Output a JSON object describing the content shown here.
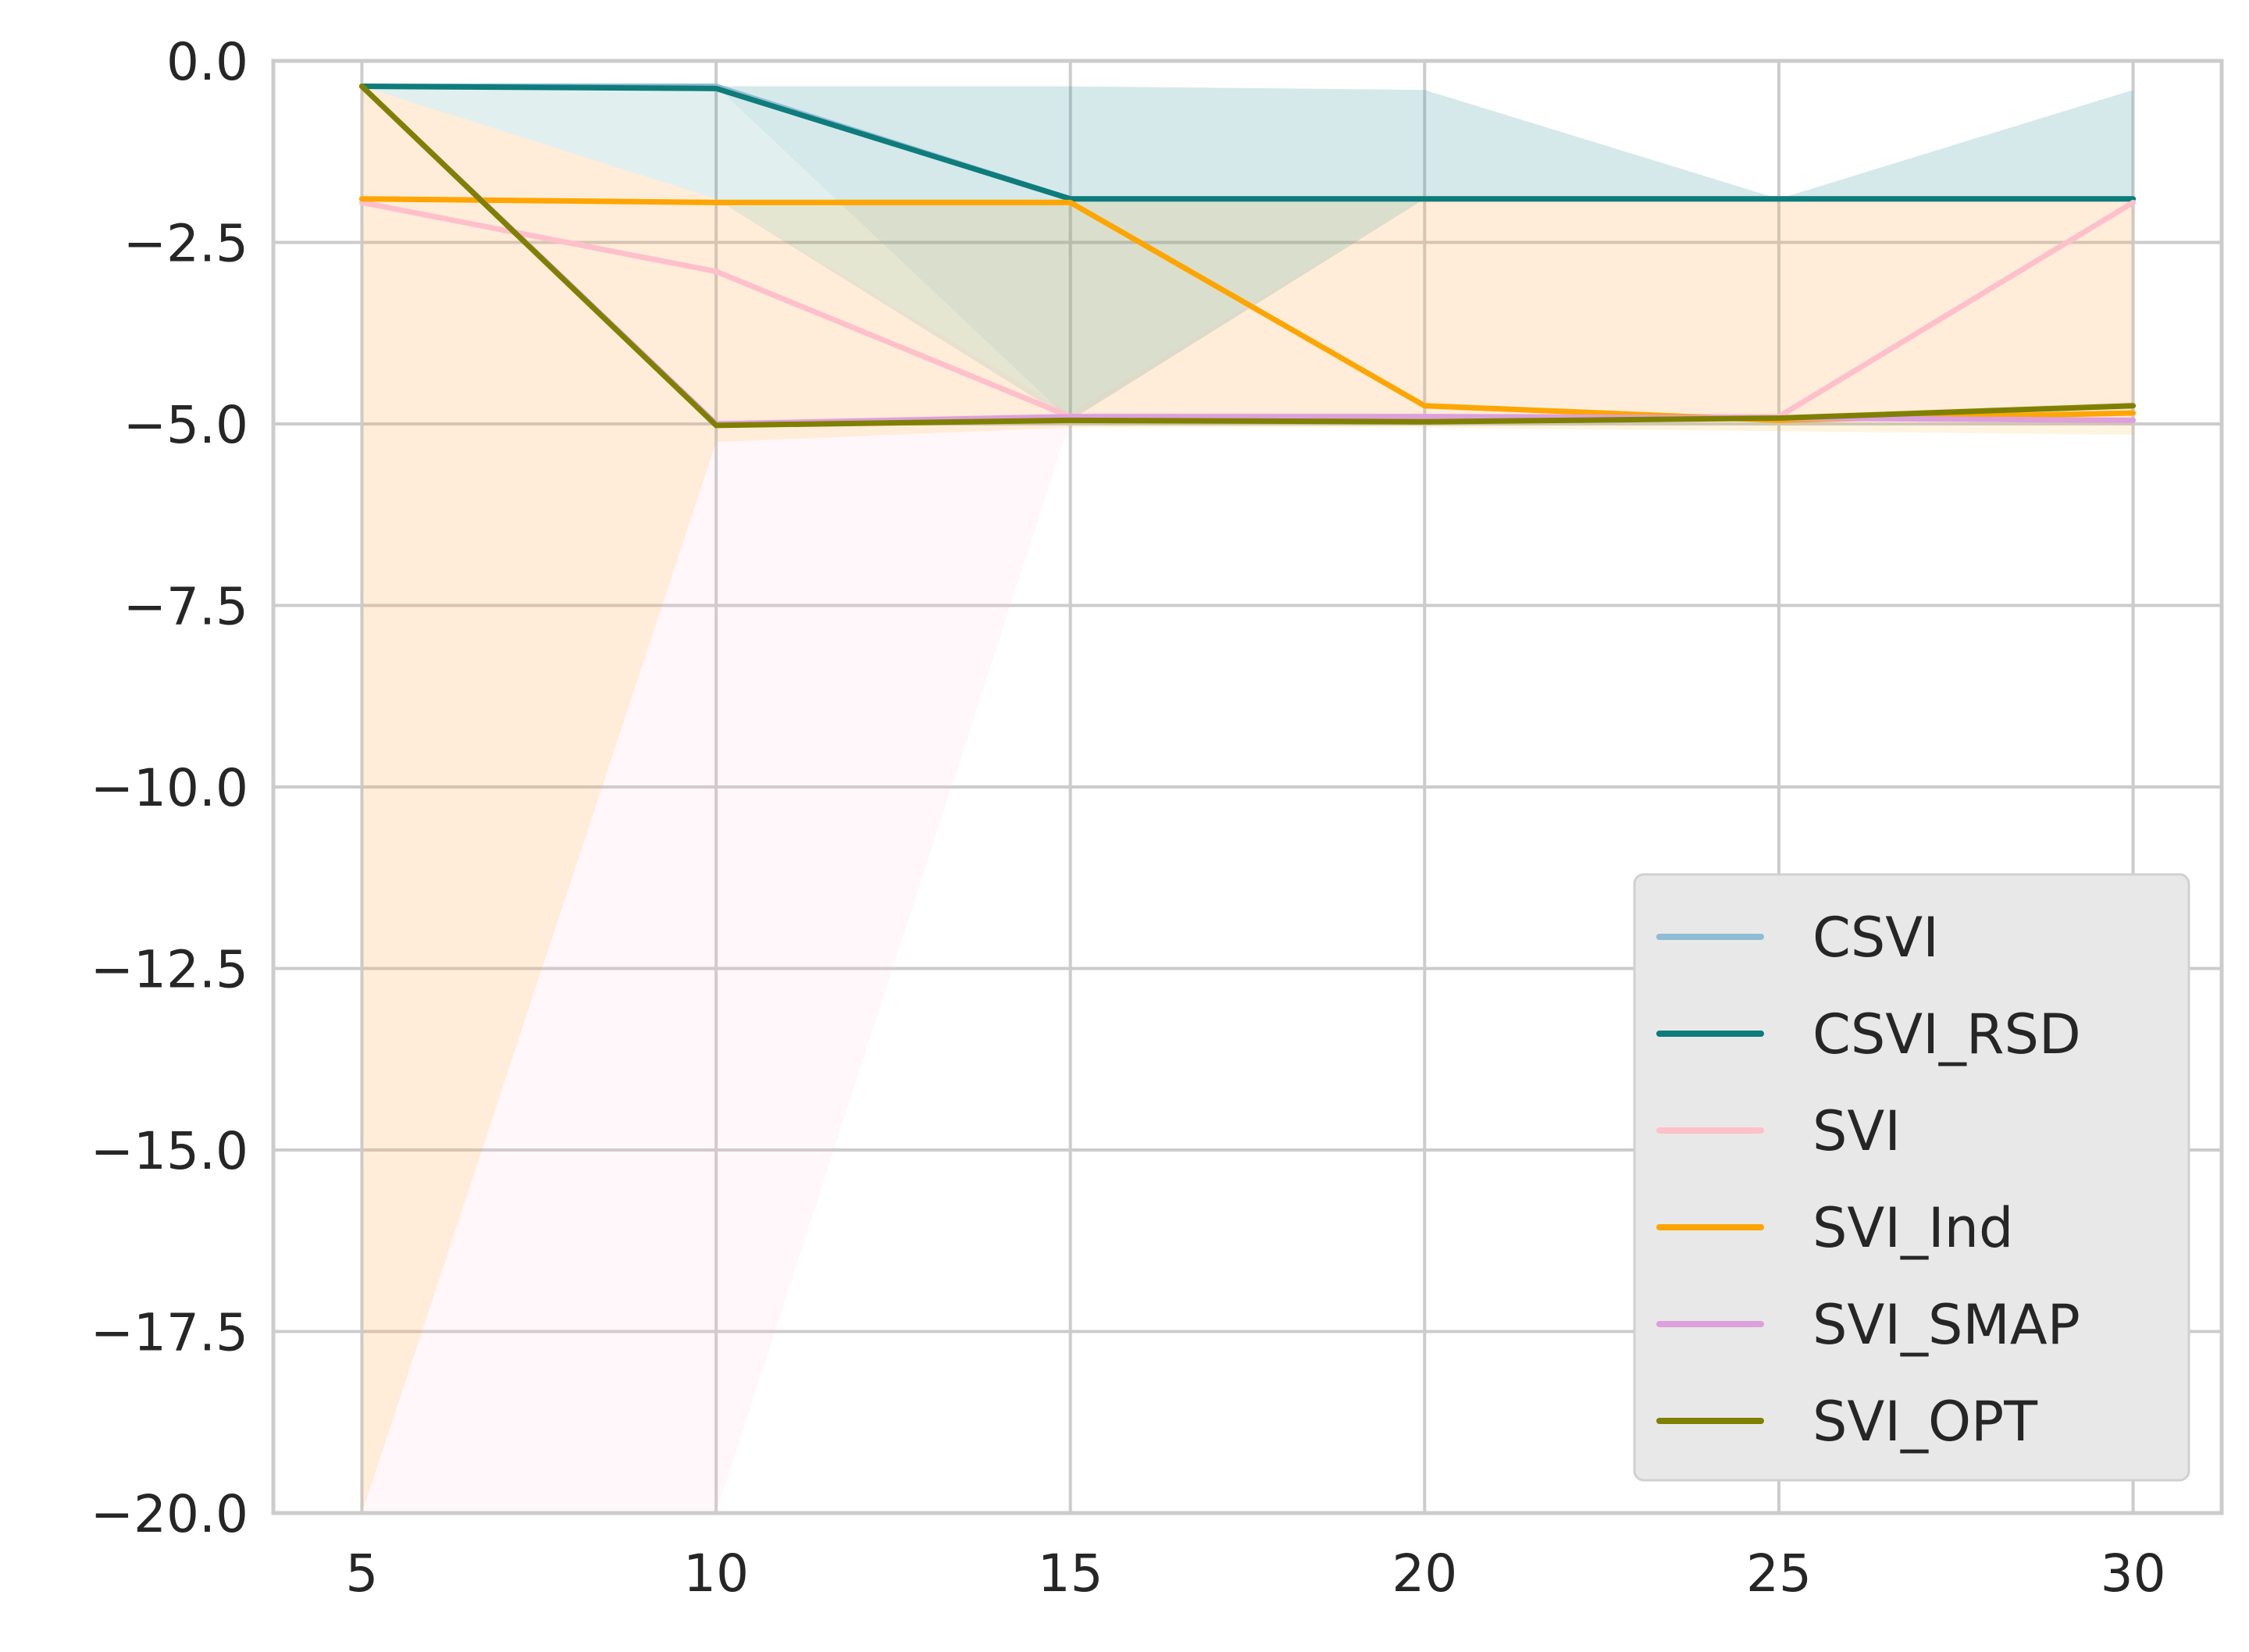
{
  "chart_data": {
    "type": "line",
    "title": "",
    "xlabel": "",
    "ylabel": "",
    "x": [
      5,
      10,
      15,
      20,
      25,
      30
    ],
    "xlim": [
      3.75,
      31.25
    ],
    "ylim": [
      -20,
      0
    ],
    "xticks": [
      5,
      10,
      15,
      20,
      25,
      30
    ],
    "xtick_labels": [
      "5",
      "10",
      "15",
      "20",
      "25",
      "30"
    ],
    "yticks": [
      0,
      -2.5,
      -5,
      -7.5,
      -10,
      -12.5,
      -15,
      -17.5,
      -20
    ],
    "ytick_labels": [
      "0.0",
      "−2.5",
      "−5.0",
      "−7.5",
      "−10.0",
      "−12.5",
      "−15.0",
      "−17.5",
      "−20.0"
    ],
    "grid": true,
    "legend_position": "lower-right",
    "series": [
      {
        "name": "CSVI",
        "color": "#8fbcd4",
        "values": [
          -0.35,
          -0.35,
          -1.9,
          -1.9,
          -1.9,
          -1.9
        ],
        "band_low": [
          -0.35,
          -0.35,
          -4.95,
          -1.9,
          -1.9,
          -1.9
        ],
        "band_high": [
          -0.35,
          -0.35,
          -0.35,
          -0.4,
          -1.9,
          -0.4
        ]
      },
      {
        "name": "CSVI_RSD",
        "color": "#0e7c7b",
        "values": [
          -0.35,
          -0.38,
          -1.9,
          -1.9,
          -1.9,
          -1.9
        ],
        "band_low": [
          -0.35,
          -1.9,
          -4.95,
          -1.9,
          -1.9,
          -1.9
        ],
        "band_high": [
          -0.35,
          -0.35,
          -0.35,
          -0.4,
          -1.9,
          -0.4
        ]
      },
      {
        "name": "SVI",
        "color": "#ffc0cb",
        "values": [
          -1.95,
          -2.9,
          -4.9,
          -4.9,
          -4.9,
          -1.95
        ],
        "band_low": [
          -20,
          -20,
          -4.95,
          -4.95,
          -4.95,
          -4.95
        ],
        "band_high": [
          -0.35,
          -1.9,
          -4.85,
          -1.9,
          -1.9,
          -1.9
        ]
      },
      {
        "name": "SVI_Ind",
        "color": "#ffa500",
        "values": [
          -1.9,
          -1.95,
          -1.95,
          -4.75,
          -4.95,
          -4.85
        ],
        "band_low": [
          -20,
          -5.25,
          -5.05,
          -5.05,
          -5.1,
          -5.15
        ],
        "band_high": [
          -0.35,
          -1.9,
          -1.9,
          -1.9,
          -1.9,
          -1.9
        ]
      },
      {
        "name": "SVI_SMAP",
        "color": "#dda0dd",
        "values": [
          -0.35,
          -5.0,
          -4.9,
          -4.9,
          -4.92,
          -4.95
        ],
        "band_low": [
          -0.35,
          -5.05,
          -4.95,
          -4.95,
          -4.95,
          -5.0
        ],
        "band_high": [
          -0.35,
          -4.95,
          -4.85,
          -4.85,
          -4.88,
          -4.9
        ]
      },
      {
        "name": "SVI_OPT",
        "color": "#808000",
        "values": [
          -0.35,
          -5.02,
          -4.95,
          -4.97,
          -4.92,
          -4.75
        ],
        "band_low": [
          -0.35,
          -5.05,
          -5.0,
          -5.0,
          -4.97,
          -4.8
        ],
        "band_high": [
          -0.35,
          -4.98,
          -4.9,
          -4.93,
          -4.88,
          -4.7
        ]
      }
    ]
  }
}
